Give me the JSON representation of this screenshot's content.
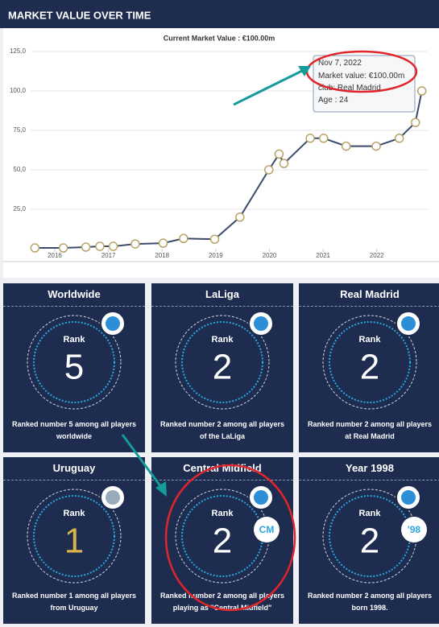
{
  "chart_data": {
    "type": "line",
    "title": "MARKET VALUE OVER TIME",
    "subtitle": "Current Market Value : €100.00m",
    "x": [
      2015.63,
      2016.16,
      2016.58,
      2016.84,
      2017.09,
      2017.5,
      2018.02,
      2018.4,
      2018.98,
      2019.45,
      2019.99,
      2020.18,
      2020.27,
      2020.76,
      2021.01,
      2021.43,
      2021.99,
      2022.42,
      2022.72,
      2022.84
    ],
    "values": [
      0.5,
      0.5,
      1,
      1.5,
      1.5,
      3,
      3.5,
      6.5,
      6,
      20,
      50,
      60,
      54,
      70,
      70,
      65,
      65,
      70,
      80,
      100
    ],
    "color": "#3b4b6c",
    "xlim": [
      2015.55,
      2022.95
    ],
    "xticks": [
      2016,
      2017,
      2018,
      2019,
      2020,
      2021,
      2022
    ],
    "ylim": [
      0,
      125
    ],
    "yticks": [
      {
        "value": 25,
        "label": "25,0"
      },
      {
        "value": 50,
        "label": "50,0"
      },
      {
        "value": 75,
        "label": "75,0"
      },
      {
        "value": 100,
        "label": "100,0"
      },
      {
        "value": 125,
        "label": "125,0"
      }
    ],
    "grid": true,
    "tooltip": {
      "date": "Nov 7, 2022",
      "market_value": "Market value: €100.00m",
      "club": "club: Real Madrid",
      "age": "Age : 24"
    }
  },
  "cards": [
    {
      "title": "Worldwide",
      "rank_label": "Rank",
      "rank": 5,
      "description": "Ranked number 5 among all players worldwide"
    },
    {
      "title": "LaLiga",
      "rank_label": "Rank",
      "rank": 2,
      "description": "Ranked number 2 among all players of the LaLiga"
    },
    {
      "title": "Real Madrid",
      "rank_label": "Rank",
      "rank": 2,
      "description": "Ranked number 2 among all players at Real Madrid"
    },
    {
      "title": "Uruguay",
      "rank_label": "Rank",
      "rank": 1,
      "description": "Ranked number 1 among all players from Uruguay"
    },
    {
      "title": "Central Midfield",
      "rank_label": "Rank",
      "rank": 2,
      "badge": "CM",
      "description": "Ranked number 2 among all players playing as \"Central Midfield\""
    },
    {
      "title": "Year 1998",
      "rank_label": "Rank",
      "rank": 2,
      "badge": "'98",
      "description": "Ranked number 2 among all players born 1998."
    }
  ]
}
